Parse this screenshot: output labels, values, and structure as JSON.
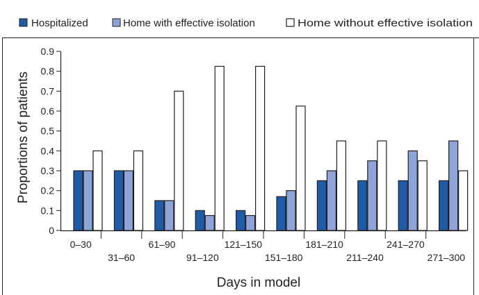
{
  "chart_data": {
    "type": "bar",
    "title": "",
    "xlabel": "Days in model",
    "ylabel": "Proportions of patients",
    "ylim": [
      0,
      0.9
    ],
    "yticks": [
      "0",
      "0.1",
      "0.2",
      "0.3",
      "0.4",
      "0.5",
      "0.6",
      "0.7",
      "0.8",
      "0.9"
    ],
    "ytick_values": [
      0,
      0.1,
      0.2,
      0.3,
      0.4,
      0.5,
      0.6,
      0.7,
      0.8,
      0.9
    ],
    "categories": [
      "0–30",
      "31–60",
      "61–90",
      "91–120",
      "121–150",
      "151–180",
      "181–210",
      "211–240",
      "241–270",
      "271–300"
    ],
    "series": [
      {
        "name": "Hospitalized",
        "color": "#1f5ca8",
        "values": [
          0.3,
          0.3,
          0.15,
          0.1,
          0.1,
          0.17,
          0.25,
          0.25,
          0.25,
          0.25
        ]
      },
      {
        "name": "Home with effective isolation",
        "color": "#8ea3d8",
        "values": [
          0.3,
          0.3,
          0.15,
          0.075,
          0.075,
          0.2,
          0.3,
          0.35,
          0.4,
          0.45
        ]
      },
      {
        "name": "Home without effective isolation",
        "color": "#ffffff",
        "values": [
          0.4,
          0.4,
          0.7,
          0.825,
          0.825,
          0.625,
          0.45,
          0.45,
          0.35,
          0.3
        ]
      }
    ],
    "legend_position": "top",
    "grid": false
  }
}
